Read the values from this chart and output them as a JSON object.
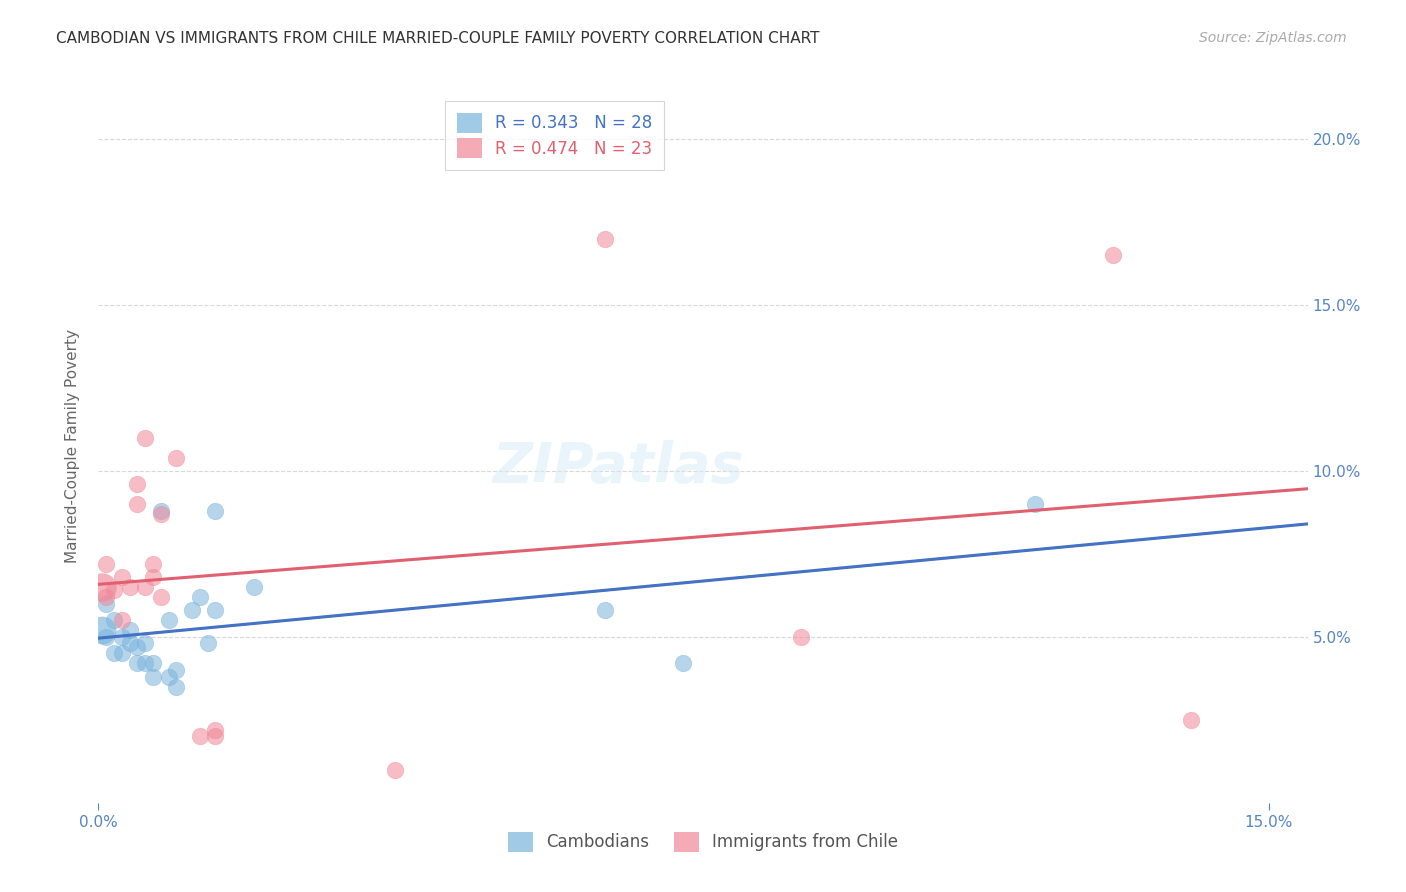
{
  "title": "CAMBODIAN VS IMMIGRANTS FROM CHILE MARRIED-COUPLE FAMILY POVERTY CORRELATION CHART",
  "source": "Source: ZipAtlas.com",
  "ylabel": "Married-Couple Family Poverty",
  "xlim": [
    0.0,
    0.155
  ],
  "ylim": [
    0.0,
    0.215
  ],
  "xtick_positions": [
    0.0,
    0.15
  ],
  "xtick_labels": [
    "0.0%",
    "15.0%"
  ],
  "ytick_positions": [
    0.05,
    0.1,
    0.15,
    0.2
  ],
  "ytick_labels": [
    "5.0%",
    "10.0%",
    "15.0%",
    "20.0%"
  ],
  "cambodian_color": "#7ab4dc",
  "chile_color": "#f08898",
  "cambodian_line_color": "#4472c4",
  "chile_line_color": "#e06070",
  "dash_color": "#bbbbbb",
  "cambodian_R": 0.343,
  "cambodian_N": 28,
  "chile_R": 0.474,
  "chile_N": 23,
  "cambodian_x": [
    0.001,
    0.001,
    0.002,
    0.002,
    0.003,
    0.003,
    0.004,
    0.004,
    0.005,
    0.005,
    0.006,
    0.006,
    0.007,
    0.007,
    0.008,
    0.009,
    0.009,
    0.01,
    0.01,
    0.012,
    0.013,
    0.014,
    0.015,
    0.015,
    0.02,
    0.065,
    0.075,
    0.12
  ],
  "cambodian_y": [
    0.05,
    0.06,
    0.045,
    0.055,
    0.045,
    0.05,
    0.048,
    0.052,
    0.042,
    0.047,
    0.042,
    0.048,
    0.038,
    0.042,
    0.088,
    0.038,
    0.055,
    0.035,
    0.04,
    0.058,
    0.062,
    0.048,
    0.058,
    0.088,
    0.065,
    0.058,
    0.042,
    0.09
  ],
  "chile_x": [
    0.001,
    0.001,
    0.002,
    0.003,
    0.003,
    0.004,
    0.005,
    0.005,
    0.006,
    0.006,
    0.007,
    0.007,
    0.008,
    0.008,
    0.01,
    0.013,
    0.015,
    0.015,
    0.038,
    0.065,
    0.09,
    0.13,
    0.14
  ],
  "chile_y": [
    0.062,
    0.072,
    0.064,
    0.055,
    0.068,
    0.065,
    0.09,
    0.096,
    0.11,
    0.065,
    0.068,
    0.072,
    0.062,
    0.087,
    0.104,
    0.02,
    0.02,
    0.022,
    0.01,
    0.17,
    0.05,
    0.165,
    0.025
  ],
  "watermark": "ZIPatlas",
  "background_color": "#ffffff",
  "grid_color": "#d8d8d8",
  "title_fontsize": 11,
  "source_fontsize": 10,
  "tick_fontsize": 11,
  "tick_color": "#5585c5",
  "ylabel_fontsize": 11,
  "scatter_size": 140,
  "scatter_alpha": 0.55
}
